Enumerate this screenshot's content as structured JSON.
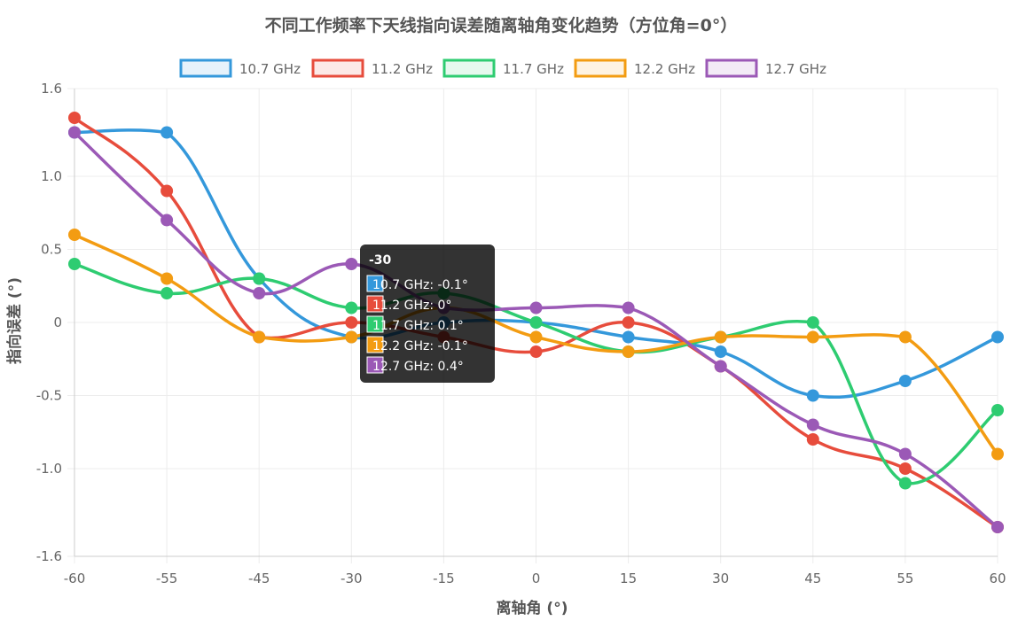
{
  "chart_data": {
    "type": "line",
    "title": "不同工作频率下天线指向误差随离轴角变化趋势（方位角=0°）",
    "xlabel": "离轴角 (°)",
    "ylabel": "指向误差 (°)",
    "categories": [
      "-60",
      "-55",
      "-45",
      "-30",
      "-15",
      "0",
      "15",
      "30",
      "45",
      "55",
      "60"
    ],
    "ylim": [
      -1.6,
      1.6
    ],
    "yticks": [
      1.6,
      1.0,
      0.5,
      0,
      -0.5,
      -1.0,
      -1.6
    ],
    "ytick_labels": [
      "1.6",
      "1.0",
      "0.5",
      "0",
      "-0.5",
      "-1.0",
      "-1.6"
    ],
    "grid": true,
    "legend_position": "top",
    "series": [
      {
        "name": "10.7 GHz",
        "color": "#3498db",
        "values": [
          1.3,
          1.3,
          0.3,
          -0.1,
          0,
          0,
          -0.1,
          -0.2,
          -0.5,
          -0.4,
          -0.1
        ]
      },
      {
        "name": "11.2 GHz",
        "color": "#e74c3c",
        "values": [
          1.4,
          0.9,
          -0.1,
          0,
          -0.1,
          -0.2,
          0,
          -0.3,
          -0.8,
          -1.0,
          -1.4
        ]
      },
      {
        "name": "11.7 GHz",
        "color": "#2ecc71",
        "values": [
          0.4,
          0.2,
          0.3,
          0.1,
          0.2,
          0,
          -0.2,
          -0.1,
          0,
          -1.1,
          -0.6
        ]
      },
      {
        "name": "12.2 GHz",
        "color": "#f39c12",
        "values": [
          0.6,
          0.3,
          -0.1,
          -0.1,
          0.1,
          -0.1,
          -0.2,
          -0.1,
          -0.1,
          -0.1,
          -0.9
        ]
      },
      {
        "name": "12.7 GHz",
        "color": "#9b59b6",
        "values": [
          1.3,
          0.7,
          0.2,
          0.4,
          0.1,
          0.1,
          0.1,
          -0.3,
          -0.7,
          -0.9,
          -1.4
        ]
      }
    ],
    "tooltip": {
      "title": "-30",
      "lines": [
        "10.7 GHz: -0.1°",
        "11.2 GHz: 0°",
        "11.7 GHz: 0.1°",
        "12.2 GHz: -0.1°",
        "12.7 GHz: 0.4°"
      ]
    }
  }
}
